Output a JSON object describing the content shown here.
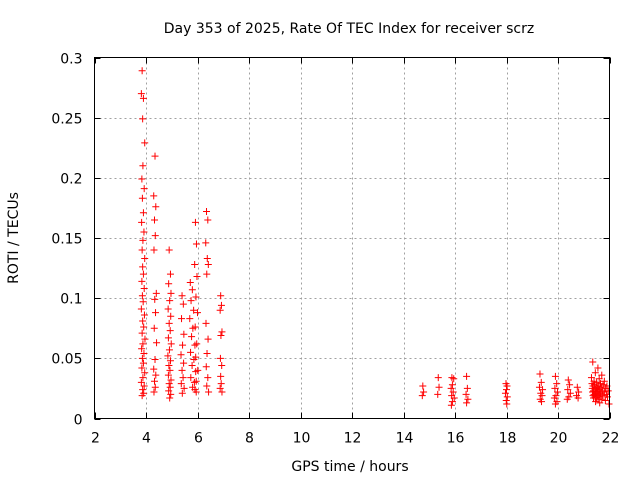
{
  "chart_data": {
    "type": "scatter",
    "title": "Day 353 of 2025, Rate Of TEC Index for receiver scrz",
    "xlabel": "GPS time / hours",
    "ylabel": "ROTI / TECUs",
    "xlim": [
      2,
      22
    ],
    "ylim": [
      0,
      0.3
    ],
    "xticks": [
      2,
      4,
      6,
      8,
      10,
      12,
      14,
      16,
      18,
      20,
      22
    ],
    "yticks": [
      0,
      0.05,
      0.1,
      0.15,
      0.2,
      0.25,
      0.3
    ],
    "xtick_labels": [
      "2",
      "4",
      "6",
      "8",
      "10",
      "12",
      "14",
      "16",
      "18",
      "20",
      "22"
    ],
    "ytick_labels": [
      "0",
      "0.05",
      "0.1",
      "0.15",
      "0.2",
      "0.25",
      "0.3"
    ],
    "grid": true,
    "marker": "+",
    "color": "#ff0000",
    "series": [
      {
        "name": "ROTI",
        "points": [
          [
            3.85,
            0.289
          ],
          [
            3.82,
            0.27
          ],
          [
            3.9,
            0.266
          ],
          [
            3.87,
            0.249
          ],
          [
            3.95,
            0.229
          ],
          [
            3.88,
            0.21
          ],
          [
            3.84,
            0.199
          ],
          [
            3.93,
            0.191
          ],
          [
            3.86,
            0.183
          ],
          [
            3.9,
            0.171
          ],
          [
            3.83,
            0.163
          ],
          [
            3.92,
            0.155
          ],
          [
            3.88,
            0.148
          ],
          [
            3.85,
            0.14
          ],
          [
            3.95,
            0.133
          ],
          [
            3.87,
            0.126
          ],
          [
            3.9,
            0.12
          ],
          [
            3.84,
            0.114
          ],
          [
            3.93,
            0.108
          ],
          [
            3.86,
            0.102
          ],
          [
            3.89,
            0.097
          ],
          [
            3.82,
            0.091
          ],
          [
            3.94,
            0.086
          ],
          [
            3.87,
            0.081
          ],
          [
            3.91,
            0.076
          ],
          [
            3.85,
            0.071
          ],
          [
            3.96,
            0.066
          ],
          [
            3.88,
            0.062
          ],
          [
            3.83,
            0.058
          ],
          [
            3.92,
            0.054
          ],
          [
            3.86,
            0.05
          ],
          [
            3.9,
            0.046
          ],
          [
            3.84,
            0.042
          ],
          [
            3.95,
            0.038
          ],
          [
            3.88,
            0.034
          ],
          [
            3.82,
            0.03
          ],
          [
            3.93,
            0.027
          ],
          [
            3.87,
            0.024
          ],
          [
            3.91,
            0.021
          ],
          [
            3.85,
            0.019
          ],
          [
            4.35,
            0.218
          ],
          [
            4.3,
            0.185
          ],
          [
            4.38,
            0.176
          ],
          [
            4.33,
            0.165
          ],
          [
            4.36,
            0.152
          ],
          [
            4.31,
            0.14
          ],
          [
            4.4,
            0.104
          ],
          [
            4.34,
            0.099
          ],
          [
            4.37,
            0.088
          ],
          [
            4.32,
            0.075
          ],
          [
            4.41,
            0.063
          ],
          [
            4.35,
            0.049
          ],
          [
            4.3,
            0.041
          ],
          [
            4.38,
            0.036
          ],
          [
            4.33,
            0.031
          ],
          [
            4.36,
            0.026
          ],
          [
            4.31,
            0.022
          ],
          [
            4.9,
            0.14
          ],
          [
            4.95,
            0.12
          ],
          [
            4.88,
            0.112
          ],
          [
            4.97,
            0.104
          ],
          [
            4.92,
            0.098
          ],
          [
            4.86,
            0.091
          ],
          [
            4.96,
            0.085
          ],
          [
            4.9,
            0.079
          ],
          [
            4.94,
            0.073
          ],
          [
            4.87,
            0.067
          ],
          [
            4.98,
            0.062
          ],
          [
            4.91,
            0.057
          ],
          [
            4.85,
            0.052
          ],
          [
            4.95,
            0.048
          ],
          [
            4.89,
            0.044
          ],
          [
            4.93,
            0.04
          ],
          [
            4.87,
            0.036
          ],
          [
            4.97,
            0.032
          ],
          [
            4.9,
            0.029
          ],
          [
            4.94,
            0.026
          ],
          [
            4.88,
            0.023
          ],
          [
            4.96,
            0.02
          ],
          [
            4.92,
            0.017
          ],
          [
            5.4,
            0.102
          ],
          [
            5.45,
            0.095
          ],
          [
            5.38,
            0.083
          ],
          [
            5.47,
            0.07
          ],
          [
            5.42,
            0.061
          ],
          [
            5.36,
            0.053
          ],
          [
            5.46,
            0.046
          ],
          [
            5.4,
            0.04
          ],
          [
            5.44,
            0.034
          ],
          [
            5.37,
            0.029
          ],
          [
            5.48,
            0.025
          ],
          [
            5.41,
            0.021
          ],
          [
            5.72,
            0.113
          ],
          [
            5.8,
            0.107
          ],
          [
            5.75,
            0.098
          ],
          [
            5.85,
            0.09
          ],
          [
            5.7,
            0.083
          ],
          [
            5.82,
            0.075
          ],
          [
            5.77,
            0.068
          ],
          [
            5.9,
            0.061
          ],
          [
            5.73,
            0.055
          ],
          [
            5.86,
            0.049
          ],
          [
            5.79,
            0.044
          ],
          [
            5.93,
            0.039
          ],
          [
            5.74,
            0.034
          ],
          [
            5.88,
            0.03
          ],
          [
            5.81,
            0.026
          ],
          [
            5.95,
            0.022
          ],
          [
            5.92,
            0.163
          ],
          [
            5.96,
            0.145
          ],
          [
            5.89,
            0.128
          ],
          [
            5.98,
            0.118
          ],
          [
            5.94,
            0.101
          ],
          [
            6.0,
            0.088
          ],
          [
            5.91,
            0.076
          ],
          [
            5.97,
            0.062
          ],
          [
            5.93,
            0.051
          ],
          [
            6.01,
            0.04
          ],
          [
            5.95,
            0.031
          ],
          [
            5.9,
            0.024
          ],
          [
            6.35,
            0.172
          ],
          [
            6.4,
            0.165
          ],
          [
            6.32,
            0.146
          ],
          [
            6.38,
            0.133
          ],
          [
            6.42,
            0.128
          ],
          [
            6.36,
            0.12
          ],
          [
            6.33,
            0.079
          ],
          [
            6.41,
            0.066
          ],
          [
            6.37,
            0.054
          ],
          [
            6.34,
            0.043
          ],
          [
            6.4,
            0.034
          ],
          [
            6.36,
            0.027
          ],
          [
            6.43,
            0.022
          ],
          [
            6.9,
            0.102
          ],
          [
            6.93,
            0.094
          ],
          [
            6.88,
            0.09
          ],
          [
            6.95,
            0.072
          ],
          [
            6.91,
            0.069
          ],
          [
            6.89,
            0.05
          ],
          [
            6.94,
            0.044
          ],
          [
            6.9,
            0.035
          ],
          [
            6.92,
            0.029
          ],
          [
            6.88,
            0.025
          ],
          [
            6.95,
            0.022
          ],
          [
            14.75,
            0.027
          ],
          [
            14.78,
            0.022
          ],
          [
            14.73,
            0.019
          ],
          [
            15.35,
            0.034
          ],
          [
            15.38,
            0.026
          ],
          [
            15.33,
            0.02
          ],
          [
            15.88,
            0.034
          ],
          [
            15.95,
            0.033
          ],
          [
            15.9,
            0.028
          ],
          [
            15.85,
            0.025
          ],
          [
            15.93,
            0.022
          ],
          [
            15.87,
            0.019
          ],
          [
            15.97,
            0.017
          ],
          [
            15.9,
            0.014
          ],
          [
            15.86,
            0.011
          ],
          [
            16.45,
            0.035
          ],
          [
            16.48,
            0.025
          ],
          [
            16.43,
            0.02
          ],
          [
            16.5,
            0.016
          ],
          [
            16.45,
            0.013
          ],
          [
            17.98,
            0.029
          ],
          [
            18.02,
            0.027
          ],
          [
            18.0,
            0.024
          ],
          [
            17.96,
            0.021
          ],
          [
            18.03,
            0.018
          ],
          [
            17.99,
            0.015
          ],
          [
            18.01,
            0.012
          ],
          [
            19.3,
            0.037
          ],
          [
            19.35,
            0.03
          ],
          [
            19.28,
            0.026
          ],
          [
            19.4,
            0.024
          ],
          [
            19.33,
            0.021
          ],
          [
            19.38,
            0.019
          ],
          [
            19.31,
            0.016
          ],
          [
            19.36,
            0.014
          ],
          [
            19.9,
            0.035
          ],
          [
            19.95,
            0.029
          ],
          [
            19.88,
            0.025
          ],
          [
            19.98,
            0.022
          ],
          [
            19.92,
            0.019
          ],
          [
            19.86,
            0.017
          ],
          [
            19.96,
            0.014
          ],
          [
            19.9,
            0.012
          ],
          [
            20.4,
            0.032
          ],
          [
            20.45,
            0.028
          ],
          [
            20.38,
            0.024
          ],
          [
            20.48,
            0.021
          ],
          [
            20.42,
            0.018
          ],
          [
            20.36,
            0.016
          ],
          [
            20.75,
            0.026
          ],
          [
            20.8,
            0.022
          ],
          [
            20.72,
            0.019
          ],
          [
            20.78,
            0.017
          ],
          [
            21.35,
            0.047
          ],
          [
            21.55,
            0.042
          ],
          [
            21.45,
            0.038
          ],
          [
            21.7,
            0.036
          ],
          [
            21.3,
            0.034
          ],
          [
            21.6,
            0.033
          ],
          [
            21.4,
            0.031
          ],
          [
            21.8,
            0.031
          ],
          [
            21.5,
            0.03
          ],
          [
            21.32,
            0.029
          ],
          [
            21.65,
            0.029
          ],
          [
            21.42,
            0.028
          ],
          [
            21.75,
            0.028
          ],
          [
            21.58,
            0.027
          ],
          [
            21.36,
            0.027
          ],
          [
            21.9,
            0.027
          ],
          [
            21.48,
            0.026
          ],
          [
            21.68,
            0.026
          ],
          [
            21.33,
            0.025
          ],
          [
            21.53,
            0.025
          ],
          [
            21.85,
            0.025
          ],
          [
            21.44,
            0.024
          ],
          [
            21.62,
            0.024
          ],
          [
            21.38,
            0.023
          ],
          [
            21.72,
            0.023
          ],
          [
            21.5,
            0.023
          ],
          [
            21.95,
            0.023
          ],
          [
            21.34,
            0.022
          ],
          [
            21.56,
            0.022
          ],
          [
            21.8,
            0.022
          ],
          [
            21.46,
            0.021
          ],
          [
            21.66,
            0.021
          ],
          [
            21.4,
            0.02
          ],
          [
            21.6,
            0.02
          ],
          [
            21.88,
            0.02
          ],
          [
            21.52,
            0.019
          ],
          [
            21.36,
            0.019
          ],
          [
            21.74,
            0.019
          ],
          [
            21.44,
            0.018
          ],
          [
            21.64,
            0.018
          ],
          [
            21.92,
            0.018
          ],
          [
            21.5,
            0.017
          ],
          [
            21.38,
            0.017
          ],
          [
            21.7,
            0.016
          ],
          [
            21.56,
            0.016
          ],
          [
            21.84,
            0.015
          ],
          [
            21.46,
            0.014
          ],
          [
            21.62,
            0.013
          ],
          [
            21.98,
            0.012
          ]
        ]
      }
    ]
  }
}
